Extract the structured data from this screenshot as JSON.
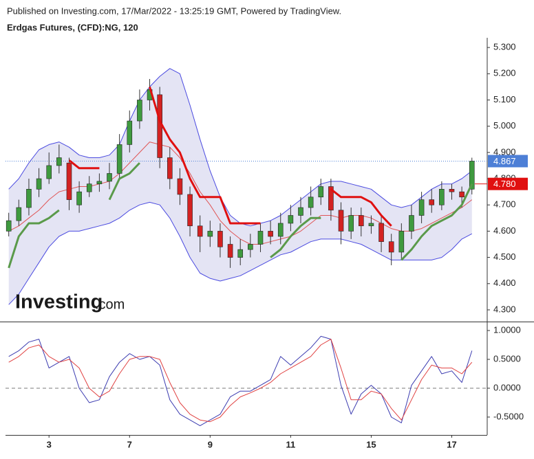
{
  "header": {
    "published": "Published on Investing.com, 17/Mar/2022 - 13:25:19 GMT, Powered by TradingView.",
    "title": "Erdgas Futures, (CFD):NG, 120"
  },
  "watermark": {
    "main": "Investing",
    "suffix": ".com"
  },
  "chart_data": [
    {
      "type": "candlestick",
      "x": [
        -1,
        -0.75,
        -0.5,
        -0.25,
        0,
        0.25,
        0.5,
        0.75,
        1,
        1.25,
        1.5,
        1.75,
        2,
        2.25,
        2.5,
        2.75,
        3,
        3.25,
        3.5,
        3.75,
        4,
        4.25,
        4.5,
        4.75,
        5,
        5.25,
        5.5,
        5.75,
        6,
        6.25,
        6.5,
        6.75,
        7,
        7.25,
        7.5,
        7.75,
        8,
        8.25,
        8.5,
        8.75,
        9,
        9.25,
        9.5,
        9.75,
        10,
        10.25,
        10.5
      ],
      "open": [
        4.6,
        4.64,
        4.69,
        4.76,
        4.8,
        4.85,
        4.86,
        4.7,
        4.75,
        4.78,
        4.79,
        4.82,
        4.93,
        5.02,
        5.1,
        5.12,
        4.88,
        4.8,
        4.74,
        4.62,
        4.58,
        4.6,
        4.55,
        4.5,
        4.53,
        4.55,
        4.6,
        4.58,
        4.63,
        4.66,
        4.69,
        4.73,
        4.77,
        4.68,
        4.6,
        4.66,
        4.62,
        4.63,
        4.56,
        4.52,
        4.6,
        4.66,
        4.72,
        4.7,
        4.76,
        4.75,
        4.76
      ],
      "high": [
        4.67,
        4.72,
        4.8,
        4.84,
        4.9,
        4.93,
        4.88,
        4.79,
        4.81,
        4.82,
        4.86,
        4.97,
        5.06,
        5.14,
        5.18,
        5.15,
        4.92,
        4.84,
        4.77,
        4.66,
        4.64,
        4.63,
        4.58,
        4.57,
        4.59,
        4.63,
        4.64,
        4.67,
        4.7,
        4.73,
        4.77,
        4.8,
        4.8,
        4.71,
        4.69,
        4.69,
        4.66,
        4.66,
        4.59,
        4.63,
        4.7,
        4.75,
        4.76,
        4.79,
        4.78,
        4.77,
        4.88
      ],
      "low": [
        4.58,
        4.62,
        4.66,
        4.73,
        4.78,
        4.82,
        4.68,
        4.67,
        4.73,
        4.75,
        4.76,
        4.8,
        4.9,
        4.99,
        5.06,
        4.84,
        4.76,
        4.7,
        4.58,
        4.52,
        4.54,
        4.5,
        4.46,
        4.47,
        4.5,
        4.52,
        4.55,
        4.55,
        4.6,
        4.63,
        4.66,
        4.7,
        4.64,
        4.55,
        4.57,
        4.58,
        4.59,
        4.52,
        4.47,
        4.49,
        4.57,
        4.63,
        4.67,
        4.68,
        4.72,
        4.69,
        4.74
      ],
      "close": [
        4.64,
        4.69,
        4.76,
        4.8,
        4.85,
        4.88,
        4.72,
        4.75,
        4.78,
        4.79,
        4.82,
        4.93,
        5.02,
        5.1,
        5.14,
        4.88,
        4.8,
        4.74,
        4.62,
        4.58,
        4.6,
        4.54,
        4.5,
        4.53,
        4.55,
        4.6,
        4.58,
        4.63,
        4.66,
        4.69,
        4.73,
        4.77,
        4.68,
        4.6,
        4.66,
        4.62,
        4.63,
        4.56,
        4.52,
        4.6,
        4.66,
        4.72,
        4.7,
        4.76,
        4.75,
        4.73,
        4.867
      ],
      "up_color": "#3f9a3f",
      "down_color": "#d32222",
      "wick_color": "#333333",
      "bands": {
        "line_color": "#4a4ae0",
        "fill": "#e4e4f4",
        "middle_color": "#e05555",
        "upper": [
          4.76,
          4.8,
          4.86,
          4.91,
          4.93,
          4.94,
          4.92,
          4.89,
          4.88,
          4.88,
          4.89,
          4.93,
          5.02,
          5.1,
          5.15,
          5.19,
          5.22,
          5.2,
          5.08,
          4.95,
          4.83,
          4.73,
          4.66,
          4.63,
          4.62,
          4.63,
          4.64,
          4.66,
          4.69,
          4.72,
          4.75,
          4.78,
          4.79,
          4.79,
          4.78,
          4.77,
          4.76,
          4.73,
          4.7,
          4.69,
          4.7,
          4.73,
          4.76,
          4.78,
          4.78,
          4.8,
          4.83
        ],
        "middle": [
          4.6,
          4.62,
          4.65,
          4.68,
          4.72,
          4.75,
          4.76,
          4.77,
          4.77,
          4.78,
          4.79,
          4.82,
          4.86,
          4.9,
          4.94,
          4.93,
          4.92,
          4.88,
          4.82,
          4.75,
          4.7,
          4.64,
          4.6,
          4.57,
          4.55,
          4.55,
          4.56,
          4.57,
          4.58,
          4.6,
          4.63,
          4.66,
          4.66,
          4.65,
          4.66,
          4.66,
          4.65,
          4.63,
          4.61,
          4.6,
          4.6,
          4.61,
          4.63,
          4.65,
          4.67,
          4.69,
          4.72
        ],
        "lower": [
          4.32,
          4.36,
          4.42,
          4.48,
          4.54,
          4.58,
          4.6,
          4.6,
          4.61,
          4.62,
          4.63,
          4.65,
          4.68,
          4.7,
          4.71,
          4.7,
          4.65,
          4.58,
          4.5,
          4.44,
          4.42,
          4.41,
          4.42,
          4.43,
          4.45,
          4.47,
          4.49,
          4.51,
          4.52,
          4.54,
          4.56,
          4.57,
          4.57,
          4.57,
          4.56,
          4.55,
          4.53,
          4.51,
          4.49,
          4.49,
          4.49,
          4.49,
          4.49,
          4.5,
          4.53,
          4.57,
          4.59
        ]
      },
      "supertrend": {
        "up_color": "#5a9a4a",
        "down_color": "#e01010",
        "up": [
          4.46,
          4.58,
          4.63,
          4.63,
          4.65,
          4.68,
          null,
          null,
          null,
          null,
          4.72,
          4.8,
          4.82,
          4.86,
          null,
          null,
          null,
          null,
          null,
          null,
          null,
          null,
          null,
          null,
          null,
          null,
          4.5,
          4.53,
          4.58,
          4.62,
          4.65,
          4.65,
          null,
          null,
          null,
          null,
          null,
          null,
          null,
          4.49,
          4.53,
          4.58,
          4.62,
          4.64,
          4.66,
          4.7,
          4.78
        ],
        "down": [
          null,
          null,
          null,
          null,
          null,
          null,
          4.87,
          4.84,
          4.84,
          4.84,
          null,
          null,
          null,
          null,
          5.15,
          5.02,
          4.95,
          4.9,
          4.8,
          4.73,
          4.73,
          4.73,
          4.63,
          4.63,
          4.63,
          4.63,
          null,
          null,
          null,
          null,
          null,
          null,
          4.76,
          4.73,
          4.73,
          4.73,
          4.71,
          4.66,
          4.62,
          null,
          null,
          null,
          null,
          null,
          null,
          null,
          null
        ]
      },
      "price_tags": [
        {
          "value": 4.867,
          "color": "#4d7fd6",
          "dotted_line": true
        },
        {
          "value": 4.78,
          "label": "4.780",
          "color": "#e01010",
          "dotted_line": false
        }
      ],
      "xlim": [
        -1.08,
        10.88
      ],
      "ylim": [
        4.258,
        5.337
      ],
      "yticks": [
        {
          "value": 4.3,
          "label": "4.300"
        },
        {
          "value": 4.4,
          "label": "4.400"
        },
        {
          "value": 4.5,
          "label": "4.500"
        },
        {
          "value": 4.6,
          "label": "4.600"
        },
        {
          "value": 4.7,
          "label": "4.700"
        },
        {
          "value": 4.8,
          "label": "4.800"
        },
        {
          "value": 4.9,
          "label": "4.900"
        },
        {
          "value": 5.0,
          "label": "5.000"
        },
        {
          "value": 5.1,
          "label": "5.100"
        },
        {
          "value": 5.2,
          "label": "5.200"
        },
        {
          "value": 5.3,
          "label": "5.300"
        }
      ]
    },
    {
      "type": "line",
      "x": [
        -1,
        -0.75,
        -0.5,
        -0.25,
        0,
        0.25,
        0.5,
        0.75,
        1,
        1.25,
        1.5,
        1.75,
        2,
        2.25,
        2.5,
        2.75,
        3,
        3.25,
        3.5,
        3.75,
        4,
        4.25,
        4.5,
        4.75,
        5,
        5.25,
        5.5,
        5.75,
        6,
        6.25,
        6.5,
        6.75,
        7,
        7.25,
        7.5,
        7.75,
        8,
        8.25,
        8.5,
        8.75,
        9,
        9.25,
        9.5,
        9.75,
        10,
        10.25,
        10.5
      ],
      "series": [
        {
          "color": "#3b3bb0",
          "values": [
            0.55,
            0.65,
            0.8,
            0.85,
            0.35,
            0.45,
            0.55,
            0,
            -0.25,
            -0.2,
            0.2,
            0.45,
            0.6,
            0.5,
            0.55,
            0.4,
            -0.2,
            -0.45,
            -0.55,
            -0.65,
            -0.55,
            -0.45,
            -0.15,
            -0.05,
            -0.05,
            0.05,
            0.15,
            0.55,
            0.4,
            0.55,
            0.7,
            0.9,
            0.85,
            0.05,
            -0.45,
            -0.1,
            0.05,
            -0.1,
            -0.5,
            -0.6,
            0.05,
            0.3,
            0.55,
            0.25,
            0.3,
            0.1,
            0.65
          ]
        },
        {
          "color": "#e04040",
          "values": [
            0.45,
            0.55,
            0.7,
            0.75,
            0.55,
            0.45,
            0.5,
            0.35,
            0,
            -0.15,
            -0.05,
            0.25,
            0.5,
            0.55,
            0.55,
            0.5,
            0.1,
            -0.25,
            -0.45,
            -0.55,
            -0.58,
            -0.5,
            -0.3,
            -0.15,
            -0.08,
            0,
            0.1,
            0.25,
            0.35,
            0.45,
            0.55,
            0.75,
            0.85,
            0.35,
            -0.2,
            -0.2,
            -0.05,
            -0.1,
            -0.35,
            -0.55,
            -0.2,
            0.15,
            0.4,
            0.35,
            0.35,
            0.25,
            0.45
          ]
        }
      ],
      "hline": 0,
      "xlim": [
        -1.08,
        10.88
      ],
      "ylim": [
        -0.81,
        1.131
      ],
      "yticks": [
        {
          "value": -0.5,
          "label": "-0.5000"
        },
        {
          "value": 0,
          "label": "0.0000"
        },
        {
          "value": 0.5,
          "label": "0.5000"
        },
        {
          "value": 1,
          "label": "1.0000"
        }
      ],
      "xticks": [
        {
          "value": 0,
          "label": "3"
        },
        {
          "value": 2,
          "label": "7"
        },
        {
          "value": 4,
          "label": "9"
        },
        {
          "value": 6,
          "label": "11"
        },
        {
          "value": 8,
          "label": "15"
        },
        {
          "value": 10,
          "label": "17"
        }
      ]
    }
  ]
}
